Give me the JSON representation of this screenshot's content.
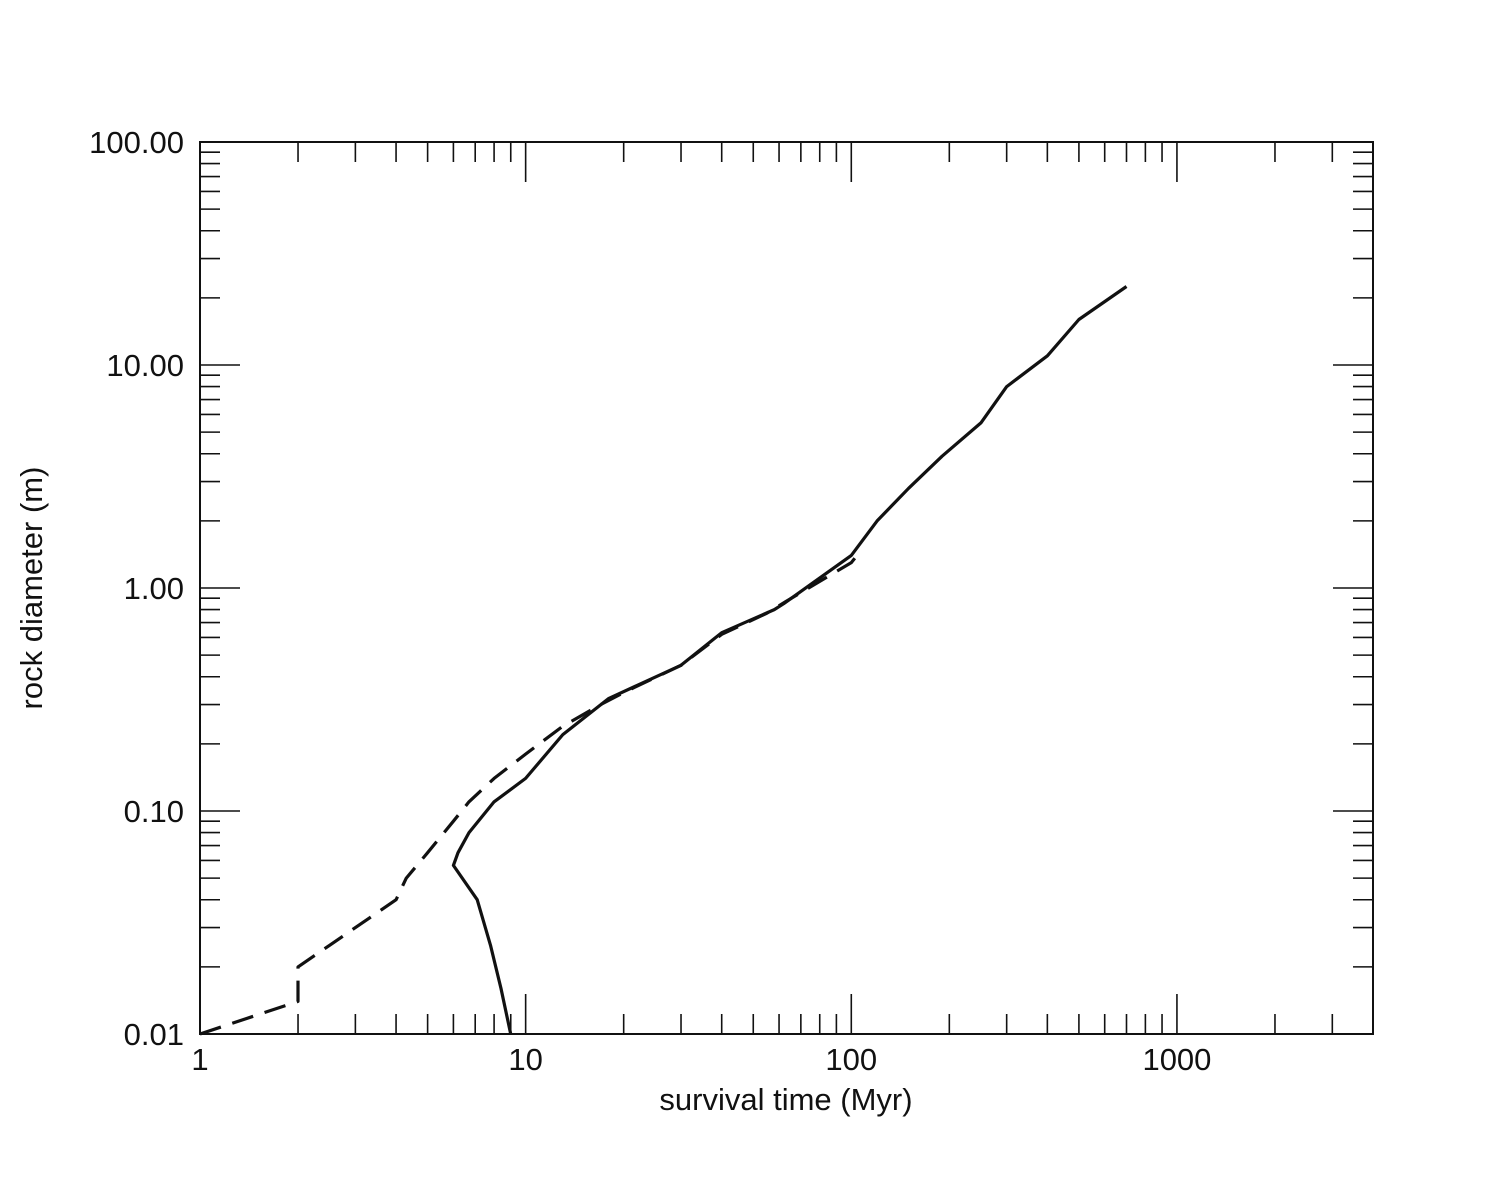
{
  "chart_data": {
    "type": "line",
    "xlabel": "survival time (Myr)",
    "ylabel": "rock diameter (m)",
    "xscale": "log",
    "yscale": "log",
    "xlim": [
      1,
      4000
    ],
    "ylim": [
      0.01,
      100
    ],
    "x_ticks": [
      {
        "value": 1,
        "label": "1"
      },
      {
        "value": 10,
        "label": "10"
      },
      {
        "value": 100,
        "label": "100"
      },
      {
        "value": 1000,
        "label": "1000"
      }
    ],
    "y_ticks": [
      {
        "value": 0.01,
        "label": "0.01"
      },
      {
        "value": 0.1,
        "label": "0.10"
      },
      {
        "value": 1,
        "label": "1.00"
      },
      {
        "value": 10,
        "label": "10.00"
      },
      {
        "value": 100,
        "label": "100.00"
      }
    ],
    "grid": false,
    "series": [
      {
        "style": "solid",
        "color": "#111111",
        "points": [
          [
            9.0,
            0.01
          ],
          [
            8.4,
            0.016
          ],
          [
            7.8,
            0.025
          ],
          [
            7.1,
            0.04
          ],
          [
            6.0,
            0.057
          ],
          [
            6.2,
            0.065
          ],
          [
            6.7,
            0.08
          ],
          [
            8.0,
            0.11
          ],
          [
            10.0,
            0.14
          ],
          [
            13.0,
            0.22
          ],
          [
            18.0,
            0.32
          ],
          [
            30.0,
            0.45
          ],
          [
            40.0,
            0.63
          ],
          [
            58.0,
            0.8
          ],
          [
            62.0,
            0.85
          ],
          [
            100.0,
            1.4
          ],
          [
            120.0,
            2.0
          ],
          [
            150.0,
            2.8
          ],
          [
            190.0,
            3.9
          ],
          [
            250.0,
            5.5
          ],
          [
            300.0,
            8.0
          ],
          [
            400.0,
            11.0
          ],
          [
            500.0,
            16.0
          ],
          [
            700.0,
            22.5
          ]
        ]
      },
      {
        "style": "dashed",
        "color": "#111111",
        "points": [
          [
            1.0,
            0.01
          ],
          [
            2.0,
            0.014
          ],
          [
            2.0,
            0.02
          ],
          [
            2.5,
            0.025
          ],
          [
            3.0,
            0.03
          ],
          [
            4.0,
            0.04
          ],
          [
            4.3,
            0.05
          ],
          [
            5.0,
            0.065
          ],
          [
            6.0,
            0.09
          ],
          [
            6.7,
            0.11
          ],
          [
            8.0,
            0.14
          ],
          [
            10.0,
            0.18
          ],
          [
            13.0,
            0.24
          ],
          [
            17.0,
            0.3
          ],
          [
            20.0,
            0.34
          ],
          [
            30.0,
            0.45
          ],
          [
            40.0,
            0.62
          ],
          [
            55.0,
            0.77
          ],
          [
            63.0,
            0.87
          ],
          [
            100.0,
            1.3
          ],
          [
            105.0,
            1.42
          ]
        ]
      }
    ]
  }
}
